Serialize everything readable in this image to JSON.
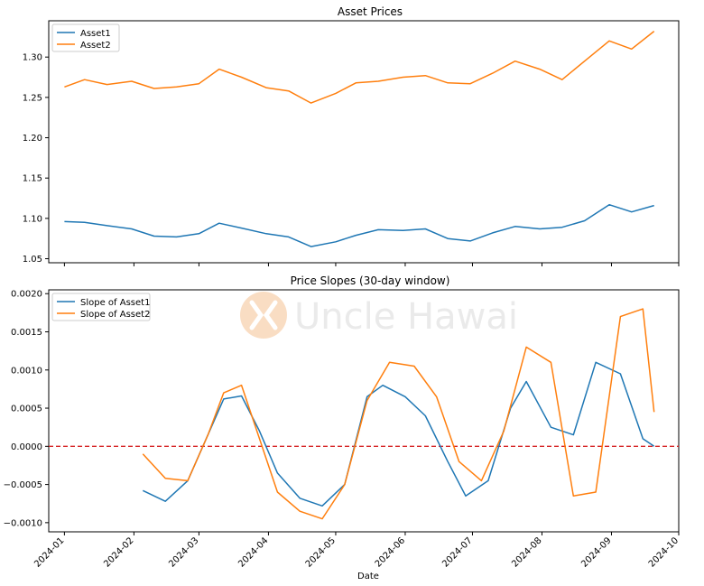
{
  "colors": {
    "asset1": "#1f77b4",
    "asset2": "#ff7f0e",
    "zero_line": "#d62728",
    "watermark": "#f6c59a"
  },
  "watermark": {
    "text": "Uncle Hawai",
    "icon": "hawaii-logo-icon"
  },
  "chart_data": [
    {
      "type": "line",
      "title": "Asset Prices",
      "xlabel": "",
      "ylabel": "",
      "ylim": [
        1.045,
        1.345
      ],
      "yticks": [
        1.05,
        1.1,
        1.15,
        1.2,
        1.25,
        1.3
      ],
      "ytick_labels": [
        "1.05",
        "1.10",
        "1.15",
        "1.20",
        "1.25",
        "1.30"
      ],
      "legend": "top-left",
      "grid": false,
      "series": [
        {
          "name": "Asset1",
          "x": [
            "2024-01-01",
            "2024-01-10",
            "2024-01-20",
            "2024-01-31",
            "2024-02-10",
            "2024-02-20",
            "2024-03-01",
            "2024-03-10",
            "2024-03-20",
            "2024-03-31",
            "2024-04-10",
            "2024-04-20",
            "2024-05-01",
            "2024-05-10",
            "2024-05-20",
            "2024-05-31",
            "2024-06-10",
            "2024-06-20",
            "2024-06-30",
            "2024-07-10",
            "2024-07-20",
            "2024-07-31",
            "2024-08-10",
            "2024-08-20",
            "2024-08-31",
            "2024-09-10",
            "2024-09-20"
          ],
          "values": [
            1.096,
            1.095,
            1.091,
            1.087,
            1.078,
            1.077,
            1.081,
            1.094,
            1.088,
            1.081,
            1.077,
            1.065,
            1.071,
            1.079,
            1.086,
            1.085,
            1.087,
            1.075,
            1.072,
            1.082,
            1.09,
            1.087,
            1.089,
            1.097,
            1.117,
            1.108,
            1.116
          ]
        },
        {
          "name": "Asset2",
          "x": [
            "2024-01-01",
            "2024-01-10",
            "2024-01-20",
            "2024-01-31",
            "2024-02-10",
            "2024-02-20",
            "2024-03-01",
            "2024-03-10",
            "2024-03-20",
            "2024-03-31",
            "2024-04-10",
            "2024-04-20",
            "2024-05-01",
            "2024-05-10",
            "2024-05-20",
            "2024-05-31",
            "2024-06-10",
            "2024-06-20",
            "2024-06-30",
            "2024-07-10",
            "2024-07-20",
            "2024-07-31",
            "2024-08-10",
            "2024-08-20",
            "2024-08-31",
            "2024-09-10",
            "2024-09-20"
          ],
          "values": [
            1.263,
            1.272,
            1.266,
            1.27,
            1.261,
            1.263,
            1.267,
            1.285,
            1.275,
            1.262,
            1.258,
            1.243,
            1.255,
            1.268,
            1.27,
            1.275,
            1.277,
            1.268,
            1.267,
            1.28,
            1.295,
            1.285,
            1.272,
            1.295,
            1.32,
            1.31,
            1.332
          ]
        }
      ]
    },
    {
      "type": "line",
      "title": "Price Slopes (30-day window)",
      "xlabel": "Date",
      "ylabel": "",
      "ylim": [
        -0.00112,
        0.00205
      ],
      "yticks": [
        -0.001,
        -0.0005,
        0.0,
        0.0005,
        0.001,
        0.0015,
        0.002
      ],
      "ytick_labels": [
        "−0.0010",
        "−0.0005",
        "0.0000",
        "0.0005",
        "0.0010",
        "0.0015",
        "0.0020"
      ],
      "xticks": [
        "2024-01-01",
        "2024-02-01",
        "2024-03-01",
        "2024-04-01",
        "2024-05-01",
        "2024-06-01",
        "2024-07-01",
        "2024-08-01",
        "2024-09-01",
        "2024-10-01"
      ],
      "xtick_labels": [
        "2024-01",
        "2024-02",
        "2024-03",
        "2024-04",
        "2024-05",
        "2024-06",
        "2024-07",
        "2024-08",
        "2024-09",
        "2024-10"
      ],
      "xlim": [
        "2023-12-25",
        "2024-10-01"
      ],
      "axhline": 0.0,
      "legend": "top-left",
      "grid": false,
      "series": [
        {
          "name": "Slope of Asset1",
          "x": [
            "2024-02-05",
            "2024-02-15",
            "2024-02-25",
            "2024-03-05",
            "2024-03-12",
            "2024-03-20",
            "2024-03-28",
            "2024-04-05",
            "2024-04-15",
            "2024-04-25",
            "2024-05-05",
            "2024-05-15",
            "2024-05-22",
            "2024-06-01",
            "2024-06-10",
            "2024-06-20",
            "2024-06-28",
            "2024-07-08",
            "2024-07-18",
            "2024-07-25",
            "2024-08-05",
            "2024-08-15",
            "2024-08-25",
            "2024-09-05",
            "2024-09-15",
            "2024-09-20"
          ],
          "values": [
            -0.00058,
            -0.00072,
            -0.00045,
            0.00015,
            0.00062,
            0.00066,
            0.0002,
            -0.00035,
            -0.00068,
            -0.00078,
            -0.0005,
            0.00065,
            0.0008,
            0.00065,
            0.0004,
            -0.0002,
            -0.00065,
            -0.00045,
            0.0005,
            0.00085,
            0.00025,
            0.00015,
            0.0011,
            0.00095,
            0.0001,
            0.0
          ]
        },
        {
          "name": "Slope of Asset2",
          "x": [
            "2024-02-05",
            "2024-02-15",
            "2024-02-25",
            "2024-03-05",
            "2024-03-12",
            "2024-03-20",
            "2024-03-28",
            "2024-04-05",
            "2024-04-15",
            "2024-04-25",
            "2024-05-05",
            "2024-05-15",
            "2024-05-25",
            "2024-06-05",
            "2024-06-15",
            "2024-06-25",
            "2024-07-05",
            "2024-07-15",
            "2024-07-25",
            "2024-08-05",
            "2024-08-15",
            "2024-08-25",
            "2024-09-05",
            "2024-09-15",
            "2024-09-20"
          ],
          "values": [
            -0.0001,
            -0.00042,
            -0.00045,
            0.00015,
            0.0007,
            0.0008,
            0.0001,
            -0.0006,
            -0.00085,
            -0.00095,
            -0.0005,
            0.0006,
            0.0011,
            0.00105,
            0.00065,
            -0.0002,
            -0.00045,
            0.0002,
            0.0013,
            0.0011,
            -0.00065,
            -0.0006,
            0.0017,
            0.0018,
            0.00045
          ]
        }
      ]
    }
  ]
}
